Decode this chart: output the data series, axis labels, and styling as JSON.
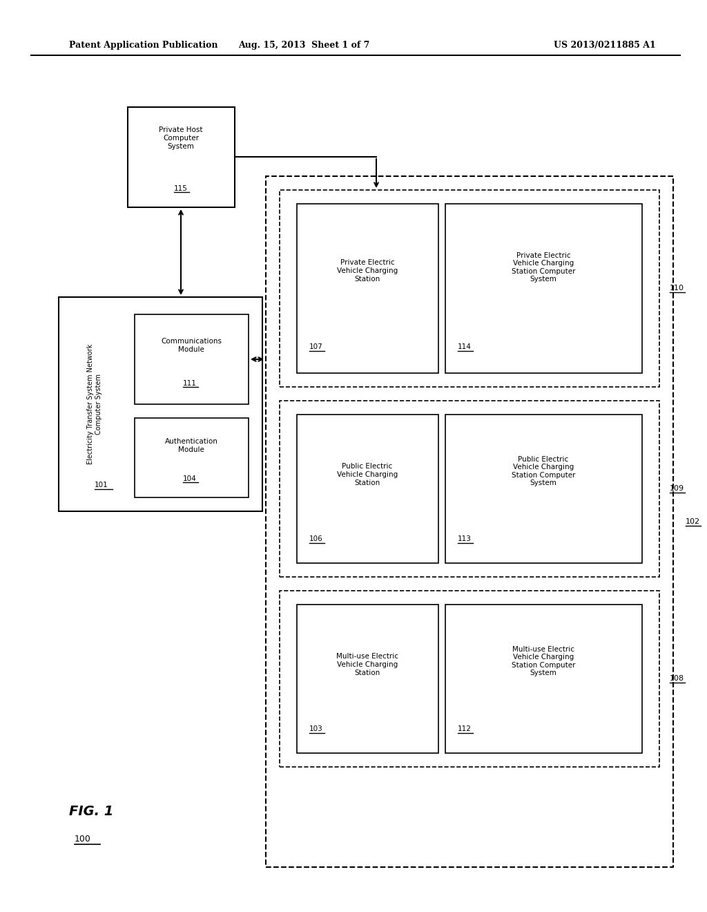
{
  "bg_color": "#ffffff",
  "header_left": "Patent Application Publication",
  "header_center": "Aug. 15, 2013  Sheet 1 of 7",
  "header_right": "US 2013/0211885 A1",
  "fig_label": "FIG. 1",
  "fig_num": "100"
}
